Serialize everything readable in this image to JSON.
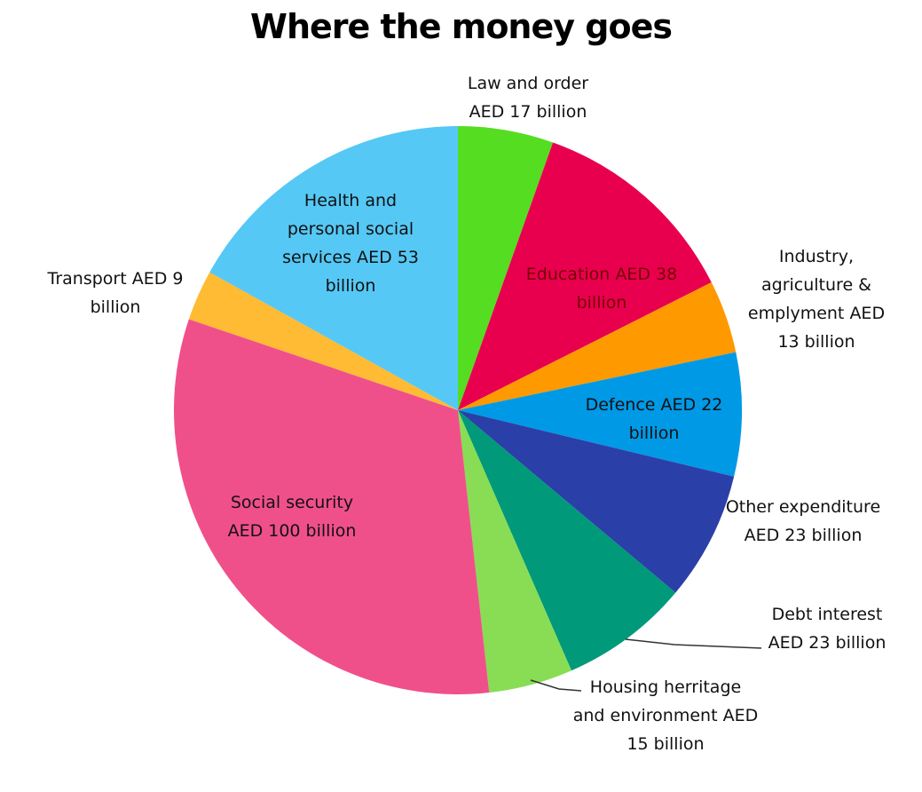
{
  "chart_data": {
    "type": "pie",
    "title": "Where the money goes",
    "categories": [
      "Law and order",
      "Education",
      "Industry, agriculture & emplyment",
      "Defence",
      "Other expenditure",
      "Debt interest",
      "Housing herritage and environment",
      "Social security",
      "Transport",
      "Health and personal social services"
    ],
    "values": [
      17,
      38,
      13,
      22,
      23,
      23,
      15,
      100,
      9,
      53
    ],
    "value_labels": [
      "AED 17 billion",
      "AED 38 billion",
      "AED 13 billion",
      "AED 22 billion",
      "AED 23 billion",
      "AED 23 billion",
      "AED 15 billion",
      "AED 100 billion",
      "AED 9 billion",
      "AED 53 billion"
    ],
    "colors": [
      "#55dd22",
      "#e8004f",
      "#ff9900",
      "#0099e6",
      "#2b3fa8",
      "#00997a",
      "#88dd55",
      "#f0508a",
      "#ffbb33",
      "#55c8f5"
    ]
  }
}
